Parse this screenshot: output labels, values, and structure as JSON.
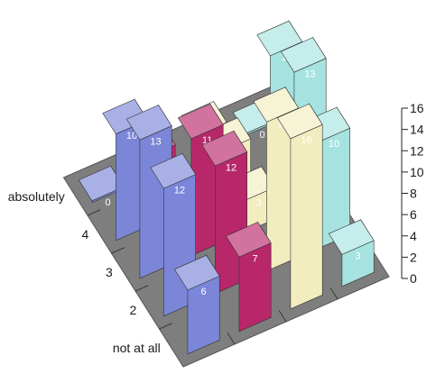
{
  "chart_data": {
    "type": "bar",
    "title": "",
    "row_labels": [
      "not at all",
      "2",
      "3",
      "4",
      "absolutely"
    ],
    "z_ticks": [
      "0",
      "2",
      "4",
      "6",
      "8",
      "10",
      "12",
      "14",
      "16"
    ],
    "zlim": [
      0,
      16
    ],
    "series": [
      {
        "color": "#7b86d8",
        "values": [
          6,
          12,
          13,
          10,
          0
        ]
      },
      {
        "color": "#b8276a",
        "values": [
          7,
          12,
          11,
          0,
          2
        ]
      },
      {
        "color": "#f2edbe",
        "values": [
          16,
          14,
          3,
          4,
          2
        ]
      },
      {
        "color": "#a6e3e0",
        "values": [
          3,
          10,
          13,
          11,
          0
        ]
      }
    ],
    "grid": false
  }
}
